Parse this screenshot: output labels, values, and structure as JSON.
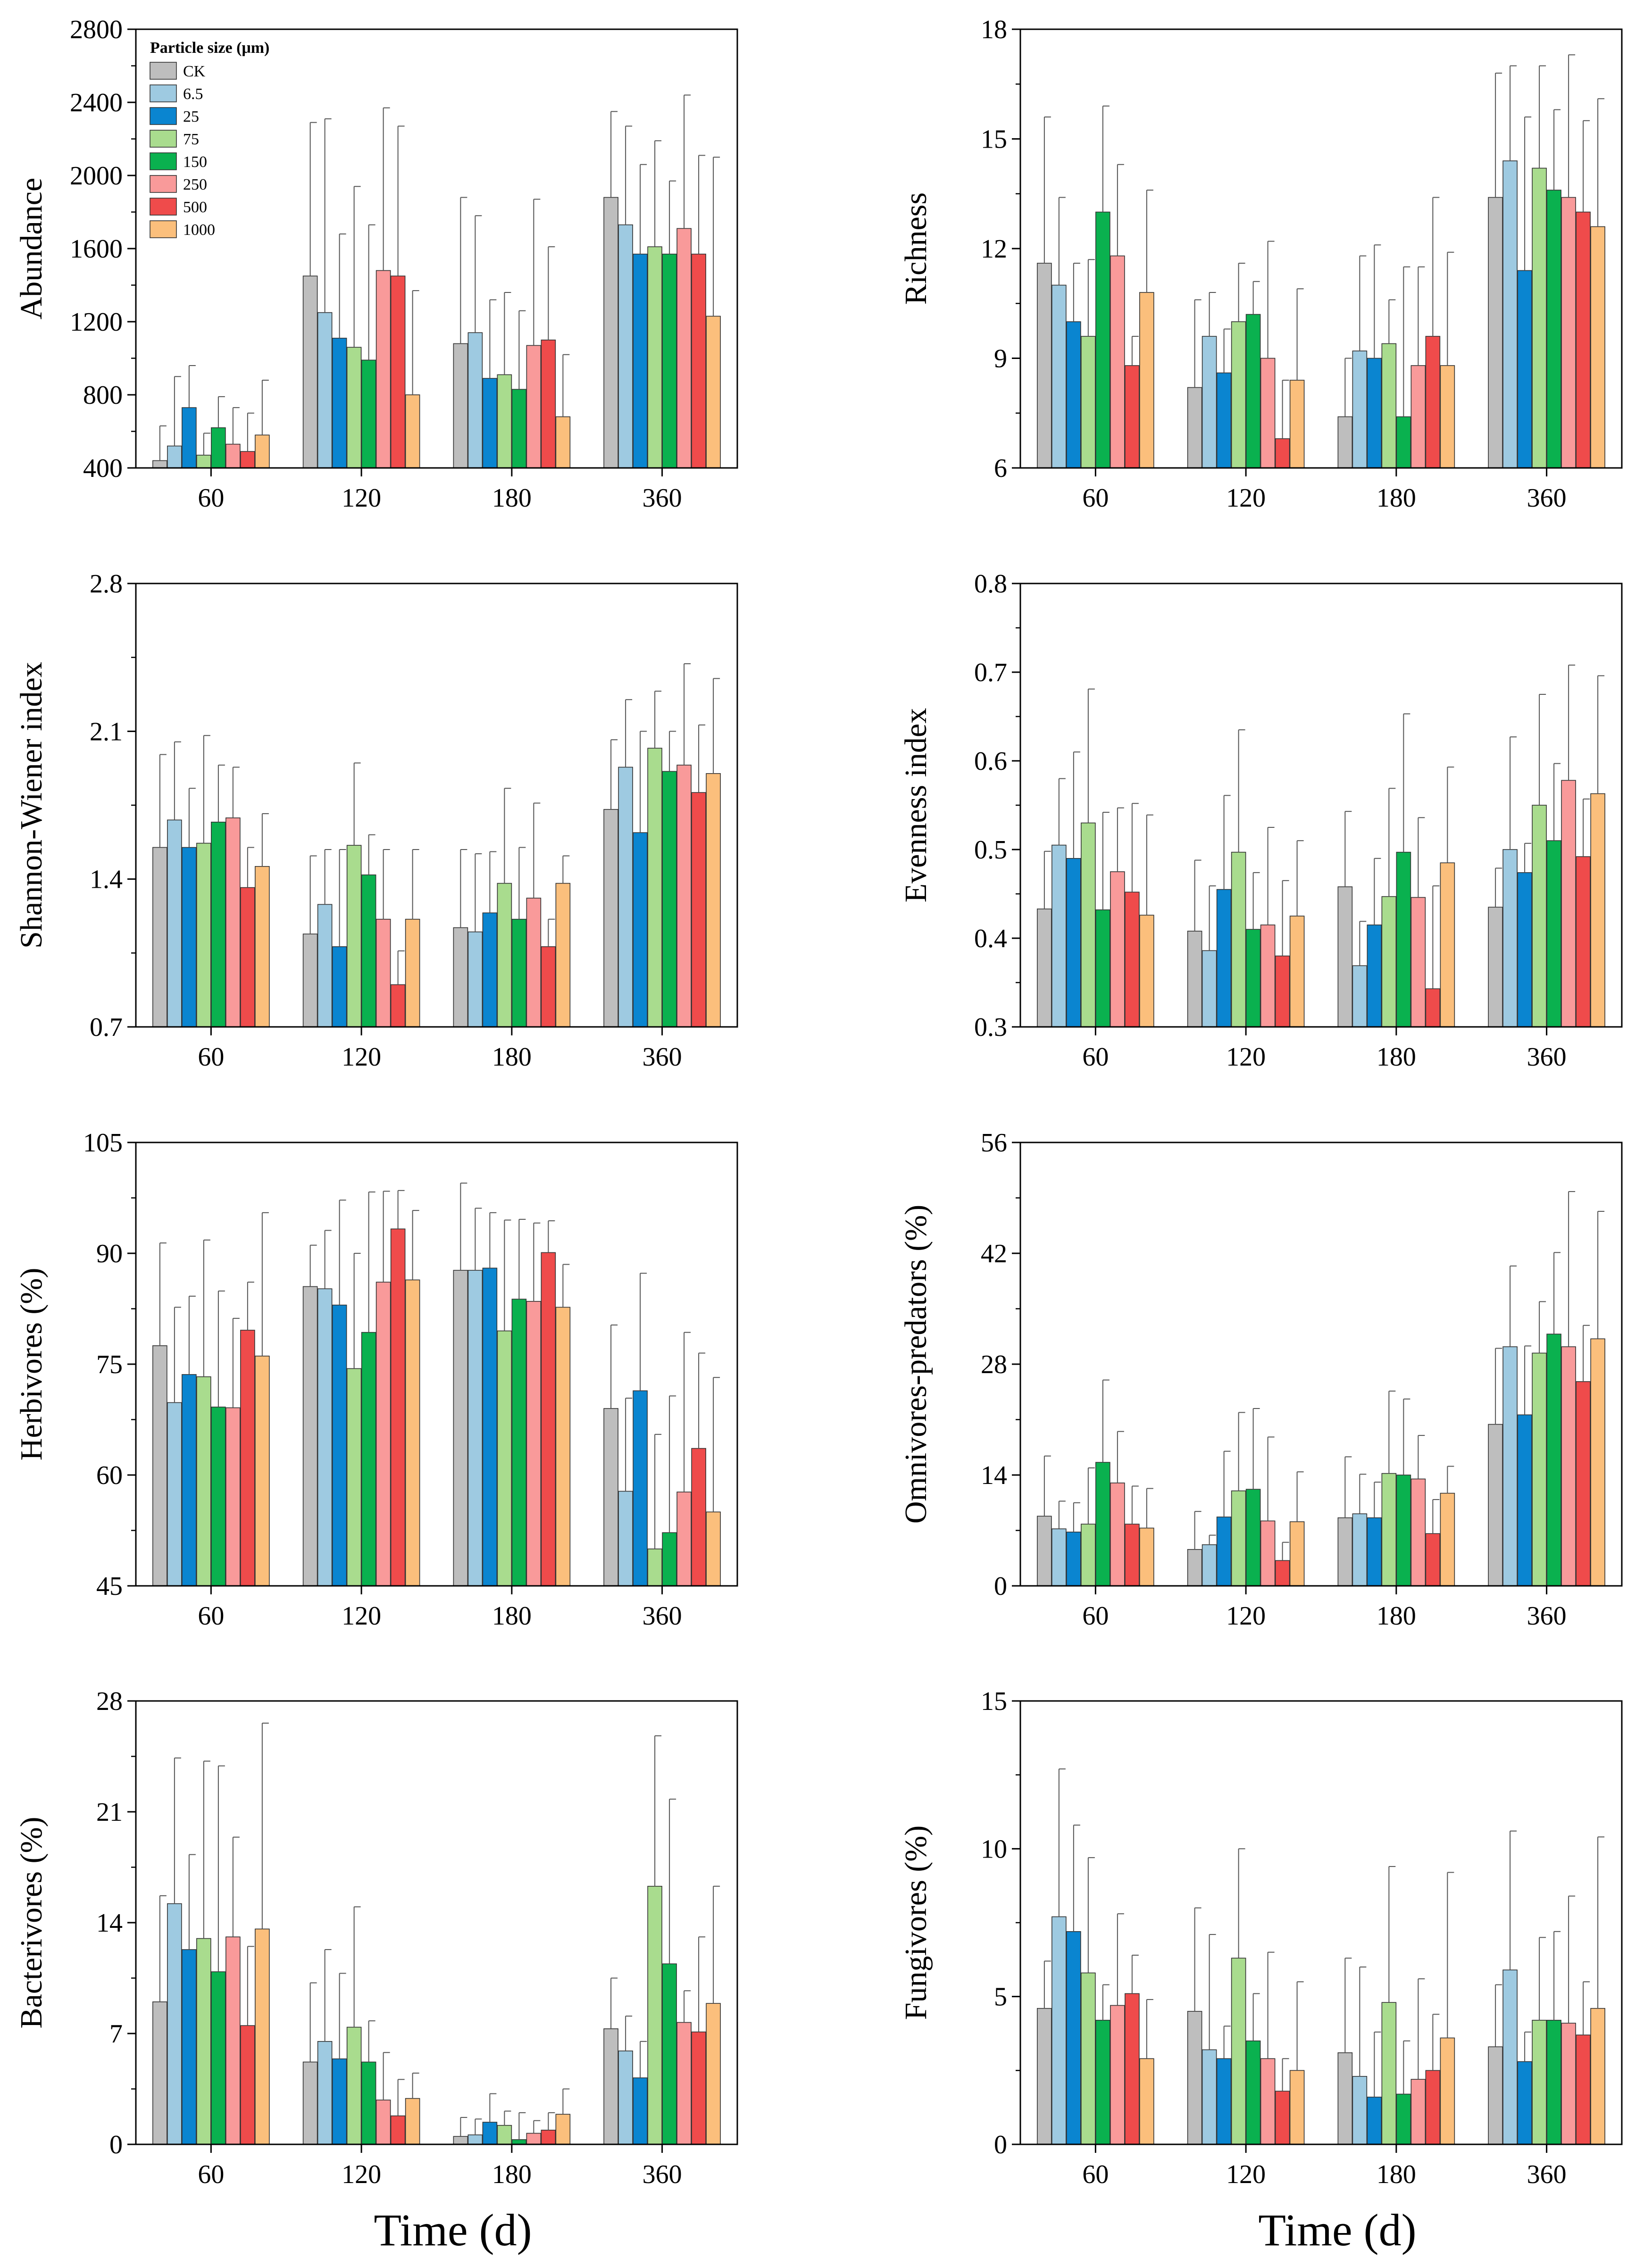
{
  "colors": {
    "CK": "#bebebe",
    "6.5": "#9ecae1",
    "25": "#0a85d0",
    "75": "#a9dc8e",
    "150": "#0ab14f",
    "250": "#f99a9a",
    "500": "#ef4b4b",
    "1000": "#fbbf7c"
  },
  "legend": {
    "title": "Particle  size (μm)",
    "entries": [
      "CK",
      "6.5",
      "25",
      "75",
      "150",
      "250",
      "500",
      "1000"
    ]
  },
  "x_axis_label": "Time (d)",
  "chart_data": [
    {
      "type": "bar",
      "title": "",
      "ylabel": "Abundance",
      "categories": [
        "60",
        "120",
        "180",
        "360"
      ],
      "ylim": [
        400,
        2800
      ],
      "yticks": [
        400,
        800,
        1200,
        1600,
        2000,
        2400,
        2800
      ],
      "series": [
        {
          "name": "CK",
          "values": [
            440,
            1450,
            1080,
            1880
          ],
          "errors": [
            190,
            840,
            800,
            470
          ]
        },
        {
          "name": "6.5",
          "values": [
            520,
            1250,
            1140,
            1730
          ],
          "errors": [
            380,
            1060,
            640,
            540
          ]
        },
        {
          "name": "25",
          "values": [
            730,
            1110,
            890,
            1570
          ],
          "errors": [
            230,
            570,
            430,
            490
          ]
        },
        {
          "name": "75",
          "values": [
            470,
            1060,
            910,
            1610
          ],
          "errors": [
            120,
            880,
            450,
            580
          ]
        },
        {
          "name": "150",
          "values": [
            620,
            990,
            830,
            1570
          ],
          "errors": [
            170,
            740,
            430,
            400
          ]
        },
        {
          "name": "250",
          "values": [
            530,
            1480,
            1070,
            1710
          ],
          "errors": [
            200,
            890,
            800,
            730
          ]
        },
        {
          "name": "500",
          "values": [
            490,
            1450,
            1100,
            1570
          ],
          "errors": [
            210,
            820,
            510,
            540
          ]
        },
        {
          "name": "1000",
          "values": [
            580,
            800,
            680,
            1230
          ],
          "errors": [
            300,
            570,
            340,
            870
          ]
        }
      ]
    },
    {
      "type": "bar",
      "title": "",
      "ylabel": "Richness",
      "categories": [
        "60",
        "120",
        "180",
        "360"
      ],
      "ylim": [
        6,
        18
      ],
      "yticks": [
        6,
        9,
        12,
        15,
        18
      ],
      "series": [
        {
          "name": "CK",
          "values": [
            11.6,
            8.2,
            7.4,
            13.4
          ],
          "errors": [
            4.0,
            2.4,
            1.6,
            3.4
          ]
        },
        {
          "name": "6.5",
          "values": [
            11.0,
            9.6,
            9.2,
            14.4
          ],
          "errors": [
            2.4,
            1.2,
            2.6,
            2.6
          ]
        },
        {
          "name": "25",
          "values": [
            10.0,
            8.6,
            9.0,
            11.4
          ],
          "errors": [
            1.6,
            1.2,
            3.1,
            4.2
          ]
        },
        {
          "name": "75",
          "values": [
            9.6,
            10.0,
            9.4,
            14.2
          ],
          "errors": [
            2.1,
            1.6,
            1.2,
            2.8
          ]
        },
        {
          "name": "150",
          "values": [
            13.0,
            10.2,
            7.4,
            13.6
          ],
          "errors": [
            2.9,
            0.9,
            4.1,
            2.2
          ]
        },
        {
          "name": "250",
          "values": [
            11.8,
            9.0,
            8.8,
            13.4
          ],
          "errors": [
            2.5,
            3.2,
            2.7,
            3.9
          ]
        },
        {
          "name": "500",
          "values": [
            8.8,
            6.8,
            9.6,
            13.0
          ],
          "errors": [
            0.8,
            1.6,
            3.8,
            2.5
          ]
        },
        {
          "name": "1000",
          "values": [
            10.8,
            8.4,
            8.8,
            12.6
          ],
          "errors": [
            2.8,
            2.5,
            3.1,
            3.5
          ]
        }
      ]
    },
    {
      "type": "bar",
      "title": "",
      "ylabel": "Shannon-Wiener index",
      "categories": [
        "60",
        "120",
        "180",
        "360"
      ],
      "ylim": [
        0.7,
        2.8
      ],
      "yticks": [
        0.7,
        1.4,
        2.1,
        2.8
      ],
      "series": [
        {
          "name": "CK",
          "values": [
            1.55,
            1.14,
            1.17,
            1.73
          ],
          "errors": [
            0.44,
            0.37,
            0.37,
            0.33
          ]
        },
        {
          "name": "6.5",
          "values": [
            1.68,
            1.28,
            1.15,
            1.93
          ],
          "errors": [
            0.37,
            0.26,
            0.37,
            0.32
          ]
        },
        {
          "name": "25",
          "values": [
            1.55,
            1.08,
            1.24,
            1.62
          ],
          "errors": [
            0.28,
            0.46,
            0.29,
            0.48
          ]
        },
        {
          "name": "75",
          "values": [
            1.57,
            1.56,
            1.38,
            2.02
          ],
          "errors": [
            0.51,
            0.39,
            0.45,
            0.27
          ]
        },
        {
          "name": "150",
          "values": [
            1.67,
            1.42,
            1.21,
            1.91
          ],
          "errors": [
            0.27,
            0.19,
            0.34,
            0.19
          ]
        },
        {
          "name": "250",
          "values": [
            1.69,
            1.21,
            1.31,
            1.94
          ],
          "errors": [
            0.24,
            0.33,
            0.45,
            0.48
          ]
        },
        {
          "name": "500",
          "values": [
            1.36,
            0.9,
            1.08,
            1.81
          ],
          "errors": [
            0.19,
            0.16,
            0.13,
            0.32
          ]
        },
        {
          "name": "1000",
          "values": [
            1.46,
            1.21,
            1.38,
            1.9
          ],
          "errors": [
            0.25,
            0.33,
            0.13,
            0.45
          ]
        }
      ]
    },
    {
      "type": "bar",
      "title": "",
      "ylabel": "Evenness index",
      "categories": [
        "60",
        "120",
        "180",
        "360"
      ],
      "ylim": [
        0.3,
        0.8
      ],
      "yticks": [
        0.3,
        0.4,
        0.5,
        0.6,
        0.7,
        0.8
      ],
      "series": [
        {
          "name": "CK",
          "values": [
            0.433,
            0.408,
            0.458,
            0.435
          ],
          "errors": [
            0.065,
            0.08,
            0.085,
            0.044
          ]
        },
        {
          "name": "6.5",
          "values": [
            0.505,
            0.386,
            0.369,
            0.5
          ],
          "errors": [
            0.075,
            0.073,
            0.05,
            0.127
          ]
        },
        {
          "name": "25",
          "values": [
            0.49,
            0.455,
            0.415,
            0.474
          ],
          "errors": [
            0.12,
            0.106,
            0.075,
            0.033
          ]
        },
        {
          "name": "75",
          "values": [
            0.53,
            0.497,
            0.447,
            0.55
          ],
          "errors": [
            0.151,
            0.138,
            0.122,
            0.125
          ]
        },
        {
          "name": "150",
          "values": [
            0.432,
            0.41,
            0.497,
            0.51
          ],
          "errors": [
            0.11,
            0.064,
            0.156,
            0.087
          ]
        },
        {
          "name": "250",
          "values": [
            0.475,
            0.415,
            0.446,
            0.578
          ],
          "errors": [
            0.072,
            0.11,
            0.09,
            0.13
          ]
        },
        {
          "name": "500",
          "values": [
            0.452,
            0.38,
            0.343,
            0.492
          ],
          "errors": [
            0.1,
            0.085,
            0.116,
            0.065
          ]
        },
        {
          "name": "1000",
          "values": [
            0.426,
            0.425,
            0.485,
            0.563
          ],
          "errors": [
            0.113,
            0.085,
            0.108,
            0.133
          ]
        }
      ]
    },
    {
      "type": "bar",
      "title": "",
      "ylabel": "Herbivores (%)",
      "categories": [
        "60",
        "120",
        "180",
        "360"
      ],
      "ylim": [
        45,
        105
      ],
      "yticks": [
        45,
        60,
        75,
        90,
        105
      ],
      "series": [
        {
          "name": "CK",
          "values": [
            77.5,
            85.5,
            87.7,
            69.0
          ],
          "errors": [
            13.9,
            5.6,
            11.8,
            11.3
          ]
        },
        {
          "name": "6.5",
          "values": [
            69.8,
            85.2,
            87.7,
            57.8
          ],
          "errors": [
            12.9,
            7.9,
            8.4,
            12.6
          ]
        },
        {
          "name": "25",
          "values": [
            73.6,
            83.0,
            88.0,
            71.4
          ],
          "errors": [
            10.6,
            14.2,
            7.5,
            15.9
          ]
        },
        {
          "name": "75",
          "values": [
            73.3,
            74.4,
            79.5,
            50.0
          ],
          "errors": [
            18.5,
            15.6,
            15.0,
            15.5
          ]
        },
        {
          "name": "150",
          "values": [
            69.2,
            79.3,
            83.8,
            52.2
          ],
          "errors": [
            15.7,
            19.0,
            10.8,
            18.5
          ]
        },
        {
          "name": "250",
          "values": [
            69.1,
            86.1,
            83.5,
            57.7
          ],
          "errors": [
            12.1,
            12.3,
            10.6,
            21.6
          ]
        },
        {
          "name": "500",
          "values": [
            79.6,
            93.3,
            90.1,
            63.6
          ],
          "errors": [
            6.5,
            5.2,
            4.3,
            12.9
          ]
        },
        {
          "name": "1000",
          "values": [
            76.1,
            86.4,
            82.7,
            55.0
          ],
          "errors": [
            19.4,
            9.4,
            5.8,
            18.2
          ]
        }
      ]
    },
    {
      "type": "bar",
      "title": "",
      "ylabel": "Omnivores-predators (%)",
      "categories": [
        "60",
        "120",
        "180",
        "360"
      ],
      "ylim": [
        0,
        56
      ],
      "yticks": [
        0,
        14,
        28,
        42,
        56
      ],
      "series": [
        {
          "name": "CK",
          "values": [
            8.8,
            4.6,
            8.6,
            20.4
          ],
          "errors": [
            7.6,
            4.8,
            7.7,
            9.6
          ]
        },
        {
          "name": "6.5",
          "values": [
            7.2,
            5.2,
            9.1,
            30.2
          ],
          "errors": [
            3.5,
            1.2,
            5.0,
            10.2
          ]
        },
        {
          "name": "25",
          "values": [
            6.8,
            8.7,
            8.6,
            21.6
          ],
          "errors": [
            3.7,
            8.3,
            4.5,
            8.7
          ]
        },
        {
          "name": "75",
          "values": [
            7.8,
            12.0,
            14.2,
            29.4
          ],
          "errors": [
            7.1,
            9.9,
            10.4,
            6.5
          ]
        },
        {
          "name": "150",
          "values": [
            15.6,
            12.2,
            14.0,
            31.8
          ],
          "errors": [
            10.4,
            10.2,
            9.6,
            10.3
          ]
        },
        {
          "name": "250",
          "values": [
            13.0,
            8.2,
            13.5,
            30.2
          ],
          "errors": [
            6.5,
            10.6,
            5.5,
            19.6
          ]
        },
        {
          "name": "500",
          "values": [
            7.8,
            3.2,
            6.6,
            25.8
          ],
          "errors": [
            4.8,
            2.3,
            4.3,
            7.1
          ]
        },
        {
          "name": "1000",
          "values": [
            7.3,
            8.1,
            11.7,
            31.2
          ],
          "errors": [
            5.0,
            6.3,
            3.4,
            16.1
          ]
        }
      ]
    },
    {
      "type": "bar",
      "title": "",
      "ylabel": "Bacterivores (%)",
      "categories": [
        "60",
        "120",
        "180",
        "360"
      ],
      "ylim": [
        0,
        28
      ],
      "yticks": [
        0,
        7,
        14,
        21,
        28
      ],
      "series": [
        {
          "name": "CK",
          "values": [
            9.0,
            5.2,
            0.5,
            7.3
          ],
          "errors": [
            6.7,
            5.0,
            1.2,
            3.2
          ]
        },
        {
          "name": "6.5",
          "values": [
            15.2,
            6.5,
            0.6,
            5.9
          ],
          "errors": [
            9.2,
            5.8,
            1.0,
            2.2
          ]
        },
        {
          "name": "25",
          "values": [
            12.3,
            5.4,
            1.4,
            4.2
          ],
          "errors": [
            6.0,
            5.4,
            1.8,
            2.3
          ]
        },
        {
          "name": "75",
          "values": [
            13.0,
            7.4,
            1.2,
            16.3
          ],
          "errors": [
            11.2,
            7.6,
            0.9,
            9.5
          ]
        },
        {
          "name": "150",
          "values": [
            10.9,
            5.2,
            0.3,
            11.4
          ],
          "errors": [
            13.0,
            2.6,
            1.7,
            10.4
          ]
        },
        {
          "name": "250",
          "values": [
            13.1,
            2.8,
            0.7,
            7.7
          ],
          "errors": [
            6.3,
            3.0,
            0.8,
            2.0
          ]
        },
        {
          "name": "500",
          "values": [
            7.5,
            1.8,
            0.9,
            7.1
          ],
          "errors": [
            5.0,
            2.3,
            1.1,
            6.0
          ]
        },
        {
          "name": "1000",
          "values": [
            13.6,
            2.9,
            1.9,
            8.9
          ],
          "errors": [
            13.0,
            1.6,
            1.6,
            7.4
          ]
        }
      ]
    },
    {
      "type": "bar",
      "title": "",
      "ylabel": "Fungivores (%)",
      "categories": [
        "60",
        "120",
        "180",
        "360"
      ],
      "ylim": [
        0,
        15
      ],
      "yticks": [
        0,
        5,
        10,
        15
      ],
      "series": [
        {
          "name": "CK",
          "values": [
            4.6,
            4.5,
            3.1,
            3.3
          ],
          "errors": [
            1.6,
            3.5,
            3.2,
            2.1
          ]
        },
        {
          "name": "6.5",
          "values": [
            7.7,
            3.2,
            2.3,
            5.9
          ],
          "errors": [
            5.0,
            3.9,
            3.7,
            4.7
          ]
        },
        {
          "name": "25",
          "values": [
            7.2,
            2.9,
            1.6,
            2.8
          ],
          "errors": [
            3.6,
            1.1,
            2.2,
            1.0
          ]
        },
        {
          "name": "75",
          "values": [
            5.8,
            6.3,
            4.8,
            4.2
          ],
          "errors": [
            3.9,
            3.7,
            4.6,
            2.8
          ]
        },
        {
          "name": "150",
          "values": [
            4.2,
            3.5,
            1.7,
            4.2
          ],
          "errors": [
            1.2,
            1.6,
            1.8,
            3.0
          ]
        },
        {
          "name": "250",
          "values": [
            4.7,
            2.9,
            2.2,
            4.1
          ],
          "errors": [
            3.1,
            3.6,
            3.4,
            4.3
          ]
        },
        {
          "name": "500",
          "values": [
            5.1,
            1.8,
            2.5,
            3.7
          ],
          "errors": [
            1.3,
            1.1,
            1.9,
            1.8
          ]
        },
        {
          "name": "1000",
          "values": [
            2.9,
            2.5,
            3.6,
            4.6
          ],
          "errors": [
            2.0,
            3.0,
            5.6,
            5.8
          ]
        }
      ]
    }
  ]
}
